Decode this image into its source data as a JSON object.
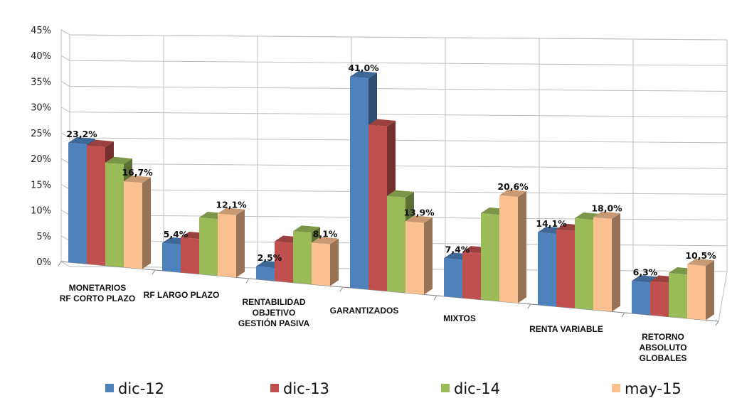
{
  "chart_data": {
    "type": "bar",
    "categories": [
      [
        "MONETARIOS",
        "RF CORTO PLAZO"
      ],
      [
        "RF LARGO PLAZO"
      ],
      [
        "RENTABILIDAD",
        "OBJETIVO",
        "GESTIÓN PASIVA"
      ],
      [
        "GARANTIZADOS"
      ],
      [
        "MIXTOS"
      ],
      [
        "RENTA VARIABLE"
      ],
      [
        "RETORNO",
        "ABSOLUTO",
        "GLOBALES"
      ]
    ],
    "series": [
      {
        "name": "dic-12",
        "color": "#4F81BD",
        "values": [
          23.2,
          5.4,
          2.5,
          41.0,
          7.4,
          14.1,
          6.3
        ]
      },
      {
        "name": "dic-13",
        "color": "#C0504D",
        "values": [
          23.0,
          6.8,
          7.7,
          32.0,
          9.0,
          15.0,
          6.6
        ]
      },
      {
        "name": "dic-14",
        "color": "#9BBB59",
        "values": [
          20.0,
          11.0,
          10.0,
          18.5,
          16.8,
          17.5,
          8.5
        ]
      },
      {
        "name": "may-15",
        "color": "#FAC090",
        "values": [
          16.7,
          12.1,
          8.1,
          13.9,
          20.6,
          18.0,
          10.5
        ]
      }
    ],
    "data_labels": [
      {
        "category": 0,
        "series": 0,
        "text": "23,2%"
      },
      {
        "category": 0,
        "series": 3,
        "text": "16,7%"
      },
      {
        "category": 1,
        "series": 0,
        "text": "5,4%"
      },
      {
        "category": 1,
        "series": 3,
        "text": "12,1%"
      },
      {
        "category": 2,
        "series": 0,
        "text": "2,5%"
      },
      {
        "category": 2,
        "series": 3,
        "text": "8,1%"
      },
      {
        "category": 3,
        "series": 0,
        "text": "41,0%"
      },
      {
        "category": 3,
        "series": 3,
        "text": "13,9%"
      },
      {
        "category": 4,
        "series": 0,
        "text": "7,4%"
      },
      {
        "category": 4,
        "series": 3,
        "text": "20,6%"
      },
      {
        "category": 5,
        "series": 0,
        "text": "14,1%"
      },
      {
        "category": 5,
        "series": 3,
        "text": "18,0%"
      },
      {
        "category": 6,
        "series": 0,
        "text": "6,3%"
      },
      {
        "category": 6,
        "series": 3,
        "text": "10,5%"
      }
    ],
    "yticks": [
      "0%",
      "5%",
      "10%",
      "15%",
      "20%",
      "25%",
      "30%",
      "35%",
      "40%",
      "45%"
    ],
    "ylim": [
      0,
      45
    ],
    "grid": true,
    "legend_position": "bottom",
    "style": "3d-clustered-column"
  }
}
